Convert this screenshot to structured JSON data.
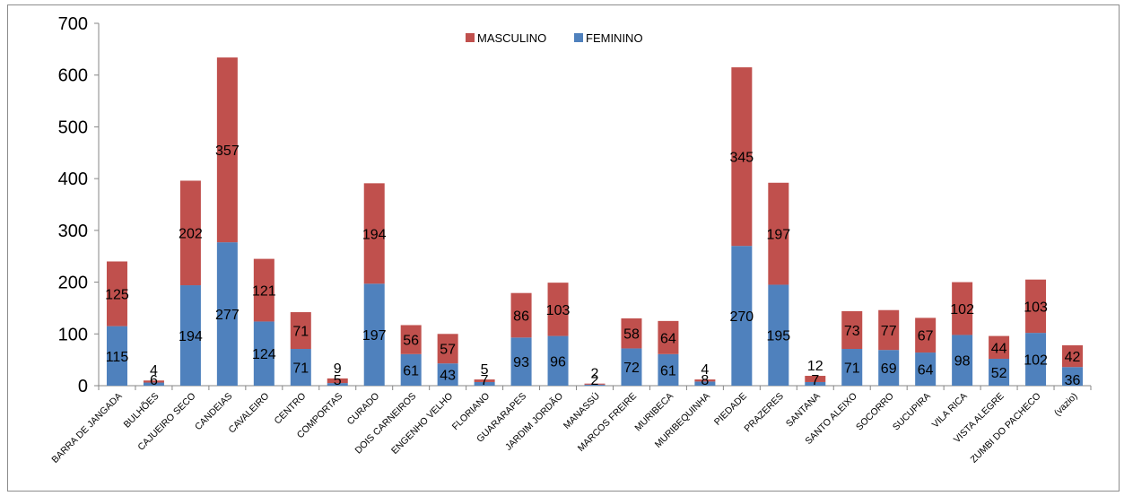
{
  "chart_data": {
    "type": "bar",
    "stacked": true,
    "categories": [
      "BARRA DE JANGADA",
      "BULHÕES",
      "CAJUEIRO SECO",
      "CANDEIAS",
      "CAVALEIRO",
      "CENTRO",
      "COMPORTAS",
      "CURADO",
      "DOIS CARNEIROS",
      "ENGENHO VELHO",
      "FLORIANO",
      "GUARARAPES",
      "JARDIM JORDÃO",
      "MANASSÚ",
      "MARCOS FREIRE",
      "MURIBECA",
      "MURIBEQUINHA",
      "PIEDADE",
      "PRAZERES",
      "SANTANA",
      "SANTO ALEIXO",
      "SOCORRO",
      "SUCUPIRA",
      "VILA RICA",
      "VISTA ALEGRE",
      "ZUMBI DO PACHECO",
      "(vazio)"
    ],
    "series": [
      {
        "name": "FEMININO",
        "color": "#4f81bd",
        "values": [
          115,
          6,
          194,
          277,
          124,
          71,
          5,
          197,
          61,
          43,
          7,
          93,
          96,
          2,
          72,
          61,
          8,
          270,
          195,
          7,
          71,
          69,
          64,
          98,
          52,
          102,
          36
        ]
      },
      {
        "name": "MASCULINO",
        "color": "#c0504d",
        "values": [
          125,
          4,
          202,
          357,
          121,
          71,
          9,
          194,
          56,
          57,
          5,
          86,
          103,
          2,
          58,
          64,
          4,
          345,
          197,
          12,
          73,
          77,
          67,
          102,
          44,
          103,
          42
        ]
      }
    ],
    "legend_order": [
      "MASCULINO",
      "FEMININO"
    ],
    "legend_position": "top-center",
    "y_ticks": [
      "0",
      "100",
      "200",
      "300",
      "400",
      "500",
      "600",
      "700"
    ],
    "ylim": [
      0,
      700
    ],
    "grid": false,
    "title": "",
    "xlabel": "",
    "ylabel": ""
  }
}
